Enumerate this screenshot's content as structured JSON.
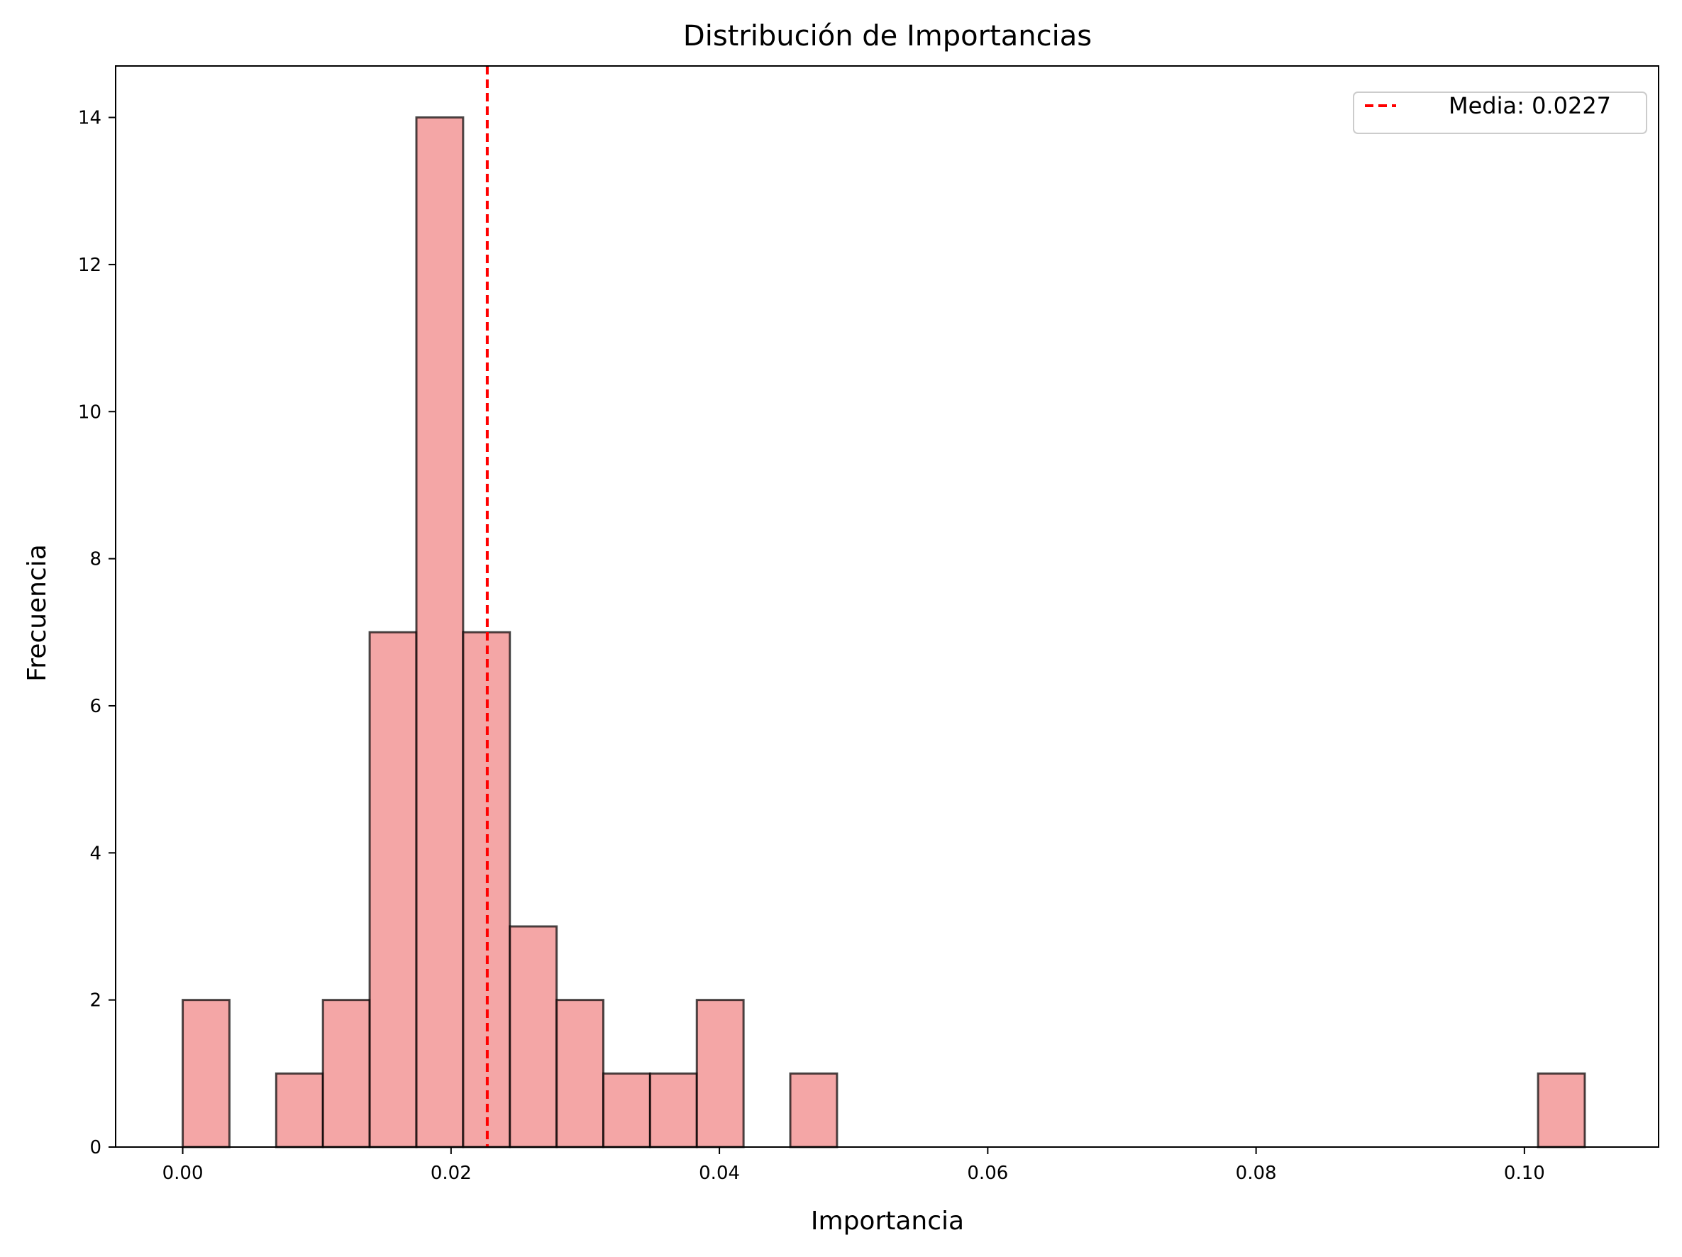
{
  "chart_data": {
    "type": "bar",
    "title": "Distribución de Importancias",
    "xlabel": "Importancia",
    "ylabel": "Frecuencia",
    "xlim": [
      -0.005,
      0.11
    ],
    "ylim": [
      0,
      14.7
    ],
    "x_ticks": [
      "0.00",
      "0.02",
      "0.04",
      "0.06",
      "0.08",
      "0.10"
    ],
    "x_tick_values": [
      0.0,
      0.02,
      0.04,
      0.06,
      0.08,
      0.1
    ],
    "y_ticks": [
      "0",
      "2",
      "4",
      "6",
      "8",
      "10",
      "12",
      "14"
    ],
    "y_tick_values": [
      0,
      2,
      4,
      6,
      8,
      10,
      12,
      14
    ],
    "bin_edges": [
      0.0,
      0.003483,
      0.006967,
      0.01045,
      0.013933,
      0.017417,
      0.0209,
      0.024383,
      0.027867,
      0.03135,
      0.034833,
      0.038317,
      0.0418,
      0.045283,
      0.048767,
      0.05225,
      0.055733,
      0.059217,
      0.0627,
      0.066183,
      0.069667,
      0.07315,
      0.076633,
      0.080117,
      0.0836,
      0.087083,
      0.090567,
      0.09405,
      0.097533,
      0.101017,
      0.1045
    ],
    "values": [
      2,
      0,
      1,
      2,
      7,
      14,
      7,
      3,
      2,
      1,
      1,
      2,
      0,
      1,
      0,
      0,
      0,
      0,
      0,
      0,
      0,
      0,
      0,
      0,
      0,
      0,
      0,
      0,
      0,
      1
    ],
    "bar_color": "#f08080",
    "bar_edge_color": "#000000",
    "mean_line": {
      "value": 0.0227,
      "color": "#ff0000",
      "label": "Media: 0.0227"
    },
    "legend_position": "upper right",
    "grid": false
  }
}
